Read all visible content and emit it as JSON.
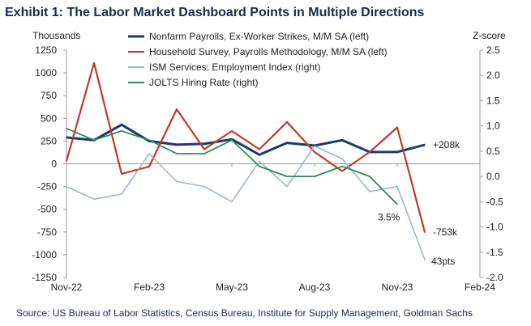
{
  "title": "Exhibit 1: The Labor Market Dashboard Points in Multiple Directions",
  "source": "Source: US Bureau of Labor Statistics, Census Bureau, Institute for Supply Management, Goldman Sachs",
  "chart_data": {
    "type": "line",
    "left_axis": {
      "label": "Thousands",
      "ylim": [
        -1250,
        1250
      ],
      "ticks": [
        1250,
        1000,
        750,
        500,
        250,
        0,
        -250,
        -500,
        -750,
        -1000,
        -1250
      ]
    },
    "right_axis": {
      "label": "Z-score",
      "ylim": [
        -2.0,
        2.5
      ],
      "ticks": [
        "2.5",
        "2.0",
        "1.5",
        "1.0",
        "0.5",
        "0.0",
        "-0.5",
        "-1.0",
        "-1.5",
        "-2.0"
      ]
    },
    "x_ticks": [
      "Nov-22",
      "Feb-23",
      "May-23",
      "Aug-23",
      "Nov-23",
      "Feb-24"
    ],
    "x": [
      "Nov-22",
      "Dec-22",
      "Jan-23",
      "Feb-23",
      "Mar-23",
      "Apr-23",
      "May-23",
      "Jun-23",
      "Jul-23",
      "Aug-23",
      "Sep-23",
      "Oct-23",
      "Nov-23",
      "Dec-23"
    ],
    "series": [
      {
        "name": "Nonfarm Payrolls, Ex-Worker Strikes, M/M SA (left)",
        "axis": "left",
        "color": "#1b3a6b",
        "values": [
          290,
          260,
          430,
          250,
          210,
          220,
          270,
          100,
          230,
          200,
          260,
          130,
          130,
          208
        ]
      },
      {
        "name": "Household Survey, Payrolls Methodology, M/M SA (left)",
        "axis": "left",
        "color": "#c0392b",
        "values": [
          30,
          1110,
          -110,
          -30,
          600,
          160,
          360,
          160,
          460,
          130,
          -80,
          130,
          400,
          -753
        ]
      },
      {
        "name": "ISM Services: Employment Index (right)",
        "axis": "right",
        "color": "#9fb6cf",
        "values": [
          -0.2,
          -0.45,
          -0.35,
          0.45,
          -0.1,
          -0.2,
          -0.5,
          0.3,
          -0.2,
          0.6,
          0.35,
          -0.3,
          -0.2,
          -1.65
        ]
      },
      {
        "name": "JOLTS Hiring Rate (right)",
        "axis": "right",
        "color": "#2e8b57",
        "values": [
          0.95,
          0.72,
          0.9,
          0.72,
          0.45,
          0.45,
          0.72,
          0.2,
          0.0,
          0.0,
          0.2,
          0.0,
          -0.55,
          null
        ]
      }
    ],
    "annotations": [
      "+208k",
      "-753k",
      "3.5%",
      "43pts"
    ]
  }
}
